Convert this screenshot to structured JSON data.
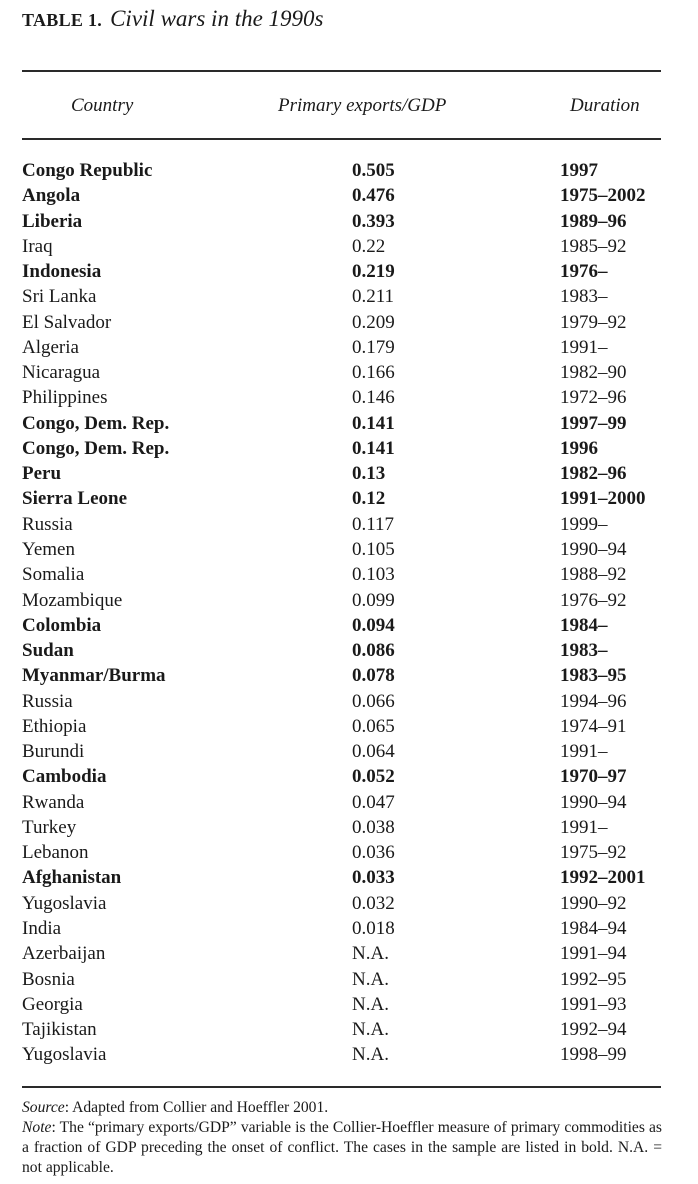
{
  "table": {
    "label": "TABLE 1.",
    "caption": "Civil wars in the 1990s",
    "columns": {
      "country": "Country",
      "exports": "Primary exports/GDP",
      "duration": "Duration"
    },
    "rows": [
      {
        "country": "Congo Republic",
        "exports": "0.505",
        "duration": "1997",
        "bold": true
      },
      {
        "country": "Angola",
        "exports": "0.476",
        "duration": "1975–2002",
        "bold": true
      },
      {
        "country": "Liberia",
        "exports": "0.393",
        "duration": "1989–96",
        "bold": true
      },
      {
        "country": "Iraq",
        "exports": "0.22",
        "duration": "1985–92",
        "bold": false
      },
      {
        "country": "Indonesia",
        "exports": "0.219",
        "duration": "1976–",
        "bold": true
      },
      {
        "country": "Sri Lanka",
        "exports": "0.211",
        "duration": "1983–",
        "bold": false
      },
      {
        "country": "El Salvador",
        "exports": "0.209",
        "duration": "1979–92",
        "bold": false
      },
      {
        "country": "Algeria",
        "exports": "0.179",
        "duration": "1991–",
        "bold": false
      },
      {
        "country": "Nicaragua",
        "exports": "0.166",
        "duration": "1982–90",
        "bold": false
      },
      {
        "country": "Philippines",
        "exports": "0.146",
        "duration": "1972–96",
        "bold": false
      },
      {
        "country": "Congo, Dem. Rep.",
        "exports": "0.141",
        "duration": "1997–99",
        "bold": true
      },
      {
        "country": "Congo, Dem. Rep.",
        "exports": "0.141",
        "duration": "1996",
        "bold": true
      },
      {
        "country": "Peru",
        "exports": "0.13",
        "duration": "1982–96",
        "bold": true
      },
      {
        "country": "Sierra Leone",
        "exports": "0.12",
        "duration": "1991–2000",
        "bold": true
      },
      {
        "country": "Russia",
        "exports": "0.117",
        "duration": "1999–",
        "bold": false
      },
      {
        "country": "Yemen",
        "exports": "0.105",
        "duration": "1990–94",
        "bold": false
      },
      {
        "country": "Somalia",
        "exports": "0.103",
        "duration": "1988–92",
        "bold": false
      },
      {
        "country": "Mozambique",
        "exports": "0.099",
        "duration": "1976–92",
        "bold": false
      },
      {
        "country": "Colombia",
        "exports": "0.094",
        "duration": "1984–",
        "bold": true
      },
      {
        "country": "Sudan",
        "exports": "0.086",
        "duration": "1983–",
        "bold": true
      },
      {
        "country": "Myanmar/Burma",
        "exports": "0.078",
        "duration": "1983–95",
        "bold": true
      },
      {
        "country": "Russia",
        "exports": "0.066",
        "duration": "1994–96",
        "bold": false
      },
      {
        "country": "Ethiopia",
        "exports": "0.065",
        "duration": "1974–91",
        "bold": false
      },
      {
        "country": "Burundi",
        "exports": "0.064",
        "duration": "1991–",
        "bold": false
      },
      {
        "country": "Cambodia",
        "exports": "0.052",
        "duration": "1970–97",
        "bold": true
      },
      {
        "country": "Rwanda",
        "exports": "0.047",
        "duration": "1990–94",
        "bold": false
      },
      {
        "country": "Turkey",
        "exports": "0.038",
        "duration": "1991–",
        "bold": false
      },
      {
        "country": "Lebanon",
        "exports": "0.036",
        "duration": "1975–92",
        "bold": false
      },
      {
        "country": "Afghanistan",
        "exports": "0.033",
        "duration": "1992–2001",
        "bold": true
      },
      {
        "country": "Yugoslavia",
        "exports": "0.032",
        "duration": "1990–92",
        "bold": false
      },
      {
        "country": "India",
        "exports": "0.018",
        "duration": "1984–94",
        "bold": false
      },
      {
        "country": "Azerbaijan",
        "exports": "N.A.",
        "duration": "1991–94",
        "bold": false
      },
      {
        "country": "Bosnia",
        "exports": "N.A.",
        "duration": "1992–95",
        "bold": false
      },
      {
        "country": "Georgia",
        "exports": "N.A.",
        "duration": "1991–93",
        "bold": false
      },
      {
        "country": "Tajikistan",
        "exports": "N.A.",
        "duration": "1992–94",
        "bold": false
      },
      {
        "country": "Yugoslavia",
        "exports": "N.A.",
        "duration": "1998–99",
        "bold": false
      }
    ]
  },
  "notes": {
    "source_label": "Source",
    "source_text": ": Adapted from Collier and Hoeffler 2001.",
    "note_label": "Note",
    "note_text": ": The “primary exports/GDP” variable is the Collier-Hoeffler measure of primary commodities as a fraction of GDP preceding the onset of conflict. The cases in the sample are listed in bold. N.A. = not applicable."
  }
}
